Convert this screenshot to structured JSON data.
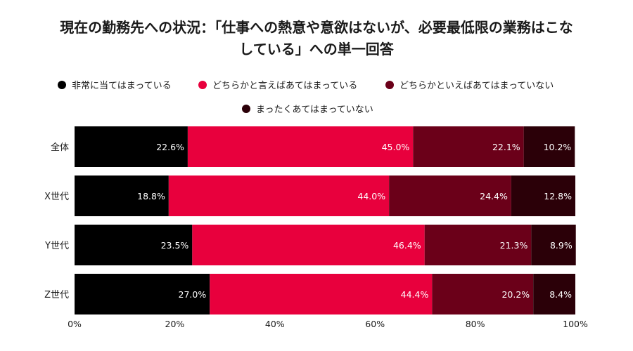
{
  "title_line1": "現在の勤務先への状況：「仕事への熱意や意欲はないが、必要最低限の業務はこな",
  "title_line2": "している」への単一回答",
  "chart_data": {
    "type": "bar",
    "orientation": "horizontal-stacked-100",
    "categories": [
      "全体",
      "X世代",
      "Y世代",
      "Z世代"
    ],
    "series": [
      {
        "name": "非常に当てはまっている",
        "color": "#000000",
        "values": [
          22.6,
          18.8,
          23.5,
          27.0
        ]
      },
      {
        "name": "どちらかと言えばあてはまっている",
        "color": "#e8003d",
        "values": [
          45.0,
          44.0,
          46.4,
          44.4
        ]
      },
      {
        "name": "どちらかといえばあてはまっていない",
        "color": "#6b0019",
        "values": [
          22.1,
          24.4,
          21.3,
          20.2
        ]
      },
      {
        "name": "まったくあてはまっていない",
        "color": "#2b0008",
        "values": [
          10.2,
          12.8,
          8.9,
          8.4
        ]
      }
    ],
    "xlim": [
      0,
      100
    ],
    "x_ticks": [
      "0%",
      "20%",
      "40%",
      "60%",
      "80%",
      "100%"
    ],
    "value_format": "percent-1-decimal",
    "legend_position": "top",
    "grid": false
  }
}
